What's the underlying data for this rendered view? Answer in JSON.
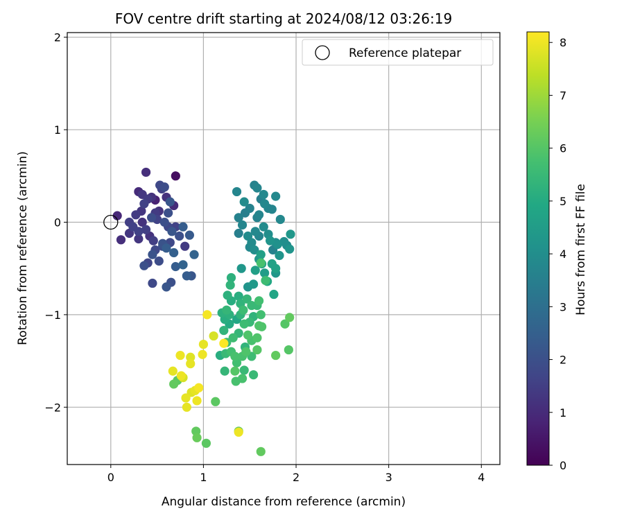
{
  "chart_data": {
    "type": "scatter",
    "title": "FOV centre drift starting at 2024/08/12 03:26:19",
    "xlabel": "Angular distance from reference (arcmin)",
    "ylabel": "Rotation from reference (arcmin)",
    "xlim": [
      -0.47,
      4.2
    ],
    "ylim": [
      -2.62,
      2.05
    ],
    "xticks": [
      0,
      1,
      2,
      3,
      4
    ],
    "xtick_labels": [
      "0",
      "1",
      "2",
      "3",
      "4"
    ],
    "yticks": [
      -2,
      -1,
      0,
      1,
      2
    ],
    "ytick_labels": [
      "−2",
      "−1",
      "0",
      "1",
      "2"
    ],
    "grid": true,
    "legend": {
      "placement": "top-right",
      "entries": [
        {
          "label": "Reference platepar",
          "marker": "open-circle",
          "x": 0,
          "y": 0
        }
      ]
    },
    "colorbar": {
      "label": "Hours from first FF file",
      "range": [
        0,
        8.2
      ],
      "ticks": [
        0,
        1,
        2,
        3,
        4,
        5,
        6,
        7,
        8
      ],
      "tick_labels": [
        "0",
        "1",
        "2",
        "3",
        "4",
        "5",
        "6",
        "7",
        "8"
      ],
      "colormap": "viridis"
    },
    "points": [
      [
        0.07,
        0.07,
        0.9
      ],
      [
        0.11,
        -0.19,
        1.1
      ],
      [
        0.2,
        0,
        1.5
      ],
      [
        0.2,
        -0.12,
        1.3
      ],
      [
        0.24,
        -0.05,
        1.6
      ],
      [
        0.3,
        0.33,
        1.0
      ],
      [
        0.34,
        0.3,
        1.3
      ],
      [
        0.38,
        0.54,
        1.1
      ],
      [
        0.33,
        0.12,
        1.3
      ],
      [
        0.36,
        0.2,
        1.6
      ],
      [
        0.4,
        0.25,
        1.4
      ],
      [
        0.44,
        0.27,
        1.2
      ],
      [
        0.48,
        0.24,
        0.8
      ],
      [
        0.34,
        0,
        1.2
      ],
      [
        0.38,
        -0.08,
        1.5
      ],
      [
        0.42,
        -0.15,
        1.2
      ],
      [
        0.3,
        -0.18,
        1.3
      ],
      [
        0.44,
        0.05,
        1.9
      ],
      [
        0.48,
        0.1,
        1.4
      ],
      [
        0.52,
        0.12,
        1.2
      ],
      [
        0.55,
        0.36,
        1.6
      ],
      [
        0.58,
        0.38,
        1.9
      ],
      [
        0.53,
        0.4,
        1.8
      ],
      [
        0.6,
        0.27,
        1.2
      ],
      [
        0.64,
        0.22,
        2.2
      ],
      [
        0.68,
        0.18,
        1.0
      ],
      [
        0.7,
        0.5,
        0.3
      ],
      [
        0.58,
        0,
        2.0
      ],
      [
        0.62,
        -0.05,
        1.8
      ],
      [
        0.66,
        -0.1,
        2.2
      ],
      [
        0.7,
        -0.05,
        1.6
      ],
      [
        0.74,
        -0.15,
        2.0
      ],
      [
        0.78,
        -0.05,
        2.4
      ],
      [
        0.56,
        -0.23,
        2.1
      ],
      [
        0.6,
        -0.28,
        2.4
      ],
      [
        0.64,
        -0.22,
        1.8
      ],
      [
        0.68,
        -0.33,
        2.5
      ],
      [
        0.48,
        -0.3,
        1.8
      ],
      [
        0.45,
        -0.35,
        2.1
      ],
      [
        0.4,
        -0.44,
        1.7
      ],
      [
        0.36,
        -0.47,
        2.0
      ],
      [
        0.45,
        -0.66,
        1.8
      ],
      [
        0.6,
        -0.7,
        2.2
      ],
      [
        0.7,
        -0.48,
        2.4
      ],
      [
        0.78,
        -0.46,
        2.6
      ],
      [
        0.8,
        -0.26,
        1.4
      ],
      [
        0.85,
        -0.14,
        2.3
      ],
      [
        0.9,
        -0.35,
        2.6
      ],
      [
        0.82,
        -0.58,
        2.4
      ],
      [
        0.87,
        -0.58,
        2.2
      ],
      [
        0.65,
        -0.65,
        2.0
      ],
      [
        0.52,
        -0.42,
        1.9
      ],
      [
        0.5,
        0.03,
        1.6
      ],
      [
        0.46,
        -0.2,
        1.5
      ],
      [
        0.3,
        -0.1,
        1.6
      ],
      [
        0.27,
        0.08,
        1.4
      ],
      [
        0.62,
        0.1,
        2.0
      ],
      [
        0.56,
        -0.26,
        1.9
      ],
      [
        1.36,
        0.33,
        3.7
      ],
      [
        1.44,
        0.22,
        3.9
      ],
      [
        1.5,
        0.15,
        3.6
      ],
      [
        1.55,
        0.4,
        3.6
      ],
      [
        1.58,
        0.37,
        3.7
      ],
      [
        1.62,
        0.25,
        3.5
      ],
      [
        1.66,
        0.2,
        3.8
      ],
      [
        1.65,
        0.3,
        3.8
      ],
      [
        1.7,
        0.15,
        3.7
      ],
      [
        1.78,
        0.28,
        3.8
      ],
      [
        1.38,
        0.05,
        3.6
      ],
      [
        1.42,
        -0.03,
        3.7
      ],
      [
        1.38,
        -0.12,
        3.5
      ],
      [
        1.48,
        -0.15,
        3.9
      ],
      [
        1.52,
        -0.22,
        3.9
      ],
      [
        1.5,
        -0.27,
        3.8
      ],
      [
        1.56,
        -0.1,
        3.8
      ],
      [
        1.6,
        0.08,
        3.7
      ],
      [
        1.65,
        -0.05,
        3.9
      ],
      [
        1.7,
        -0.13,
        4.0
      ],
      [
        1.72,
        -0.2,
        4.2
      ],
      [
        1.75,
        -0.3,
        3.6
      ],
      [
        1.78,
        -0.22,
        3.9
      ],
      [
        1.8,
        -0.24,
        4.1
      ],
      [
        1.82,
        -0.36,
        4.2
      ],
      [
        1.83,
        0.03,
        3.8
      ],
      [
        1.87,
        -0.21,
        4.0
      ],
      [
        1.9,
        -0.25,
        3.9
      ],
      [
        1.93,
        -0.29,
        4.2
      ],
      [
        1.94,
        -0.13,
        4.3
      ],
      [
        1.41,
        -0.5,
        4.3
      ],
      [
        1.48,
        -0.7,
        4.2
      ],
      [
        1.54,
        -0.67,
        4.4
      ],
      [
        1.56,
        -0.52,
        4.6
      ],
      [
        1.6,
        -0.4,
        4.3
      ],
      [
        1.63,
        -0.45,
        4.6
      ],
      [
        1.66,
        -0.55,
        4.5
      ],
      [
        1.69,
        -0.64,
        4.9
      ],
      [
        1.74,
        -0.45,
        4.7
      ],
      [
        1.78,
        -0.5,
        4.7
      ],
      [
        1.78,
        -0.55,
        4.3
      ],
      [
        1.76,
        -0.78,
        4.8
      ],
      [
        1.62,
        -0.35,
        4.6
      ],
      [
        1.58,
        0.05,
        3.6
      ],
      [
        1.74,
        0.14,
        3.7
      ],
      [
        1.55,
        -0.3,
        4.0
      ],
      [
        1.6,
        -0.15,
        3.7
      ],
      [
        1.45,
        0.1,
        3.5
      ],
      [
        1.3,
        -0.6,
        5.2
      ],
      [
        1.29,
        -0.68,
        5.3
      ],
      [
        1.26,
        -0.79,
        5.2
      ],
      [
        1.3,
        -0.85,
        5.1
      ],
      [
        1.25,
        -0.95,
        5.4
      ],
      [
        1.2,
        -0.98,
        5.2
      ],
      [
        1.23,
        -1.05,
        5.1
      ],
      [
        1.28,
        -1.1,
        5.0
      ],
      [
        1.36,
        -1.05,
        4.9
      ],
      [
        1.38,
        -0.8,
        5.1
      ],
      [
        1.4,
        -0.88,
        5.3
      ],
      [
        1.43,
        -0.95,
        5.6
      ],
      [
        1.47,
        -0.83,
        5.4
      ],
      [
        1.52,
        -0.9,
        5.5
      ],
      [
        1.54,
        -1.02,
        5.3
      ],
      [
        1.58,
        -0.9,
        5.5
      ],
      [
        1.6,
        -0.85,
        5.7
      ],
      [
        1.62,
        -1.0,
        5.7
      ],
      [
        1.6,
        -1.12,
        5.9
      ],
      [
        1.63,
        -1.13,
        5.9
      ],
      [
        1.5,
        -1.08,
        5.5
      ],
      [
        1.44,
        -1.1,
        5.6
      ],
      [
        1.38,
        -1.2,
        5.4
      ],
      [
        1.32,
        -1.25,
        5.6
      ],
      [
        1.25,
        -1.3,
        5.6
      ],
      [
        1.22,
        -1.17,
        5.3
      ],
      [
        1.18,
        -1.44,
        5.1
      ],
      [
        1.24,
        -1.42,
        5.5
      ],
      [
        1.3,
        -1.4,
        5.7
      ],
      [
        1.34,
        -1.45,
        5.8
      ],
      [
        1.36,
        -1.52,
        5.7
      ],
      [
        1.42,
        -1.45,
        5.8
      ],
      [
        1.46,
        -1.4,
        5.9
      ],
      [
        1.52,
        -1.45,
        5.6
      ],
      [
        1.58,
        -1.38,
        6.0
      ],
      [
        1.58,
        -1.25,
        5.9
      ],
      [
        1.52,
        -1.28,
        5.8
      ],
      [
        1.48,
        -1.22,
        5.9
      ],
      [
        1.44,
        -1.6,
        5.5
      ],
      [
        1.34,
        -1.61,
        6.0
      ],
      [
        1.23,
        -1.61,
        5.4
      ],
      [
        1.35,
        -1.72,
        5.8
      ],
      [
        1.42,
        -1.69,
        5.8
      ],
      [
        1.54,
        -1.65,
        5.5
      ],
      [
        1.78,
        -1.44,
        6.2
      ],
      [
        1.92,
        -1.38,
        6.0
      ],
      [
        1.88,
        -1.1,
        6.0
      ],
      [
        1.93,
        -1.03,
        6.2
      ],
      [
        1.67,
        -0.63,
        5.6
      ],
      [
        1.62,
        -0.44,
        5.8
      ],
      [
        1.45,
        -1.35,
        5.3
      ],
      [
        1.28,
        -1.0,
        5.2
      ],
      [
        1.4,
        -1.0,
        5.3
      ],
      [
        0.68,
        -1.75,
        6.2
      ],
      [
        0.72,
        -1.71,
        6.1
      ],
      [
        1.13,
        -1.94,
        6.1
      ],
      [
        0.92,
        -2.26,
        6.2
      ],
      [
        0.93,
        -2.33,
        6.3
      ],
      [
        1.03,
        -2.39,
        6.1
      ],
      [
        1.62,
        -2.48,
        6.2
      ],
      [
        1.38,
        -2.26,
        6.2
      ],
      [
        0.67,
        -1.61,
        7.9
      ],
      [
        0.75,
        -1.44,
        8.0
      ],
      [
        0.76,
        -1.66,
        8.0
      ],
      [
        0.78,
        -1.68,
        7.7
      ],
      [
        0.86,
        -1.46,
        7.8
      ],
      [
        0.86,
        -1.53,
        7.9
      ],
      [
        0.87,
        -1.84,
        7.8
      ],
      [
        0.81,
        -1.9,
        7.9
      ],
      [
        0.82,
        -2.0,
        7.9
      ],
      [
        0.91,
        -1.82,
        7.9
      ],
      [
        0.93,
        -1.93,
        8.0
      ],
      [
        0.95,
        -1.79,
        8.1
      ],
      [
        0.99,
        -1.43,
        8.0
      ],
      [
        1.0,
        -1.32,
        7.9
      ],
      [
        1.04,
        -1.0,
        8.1
      ],
      [
        1.11,
        -1.23,
        7.7
      ],
      [
        1.22,
        -1.31,
        8.2
      ],
      [
        1.38,
        -2.27,
        8.0
      ]
    ]
  }
}
